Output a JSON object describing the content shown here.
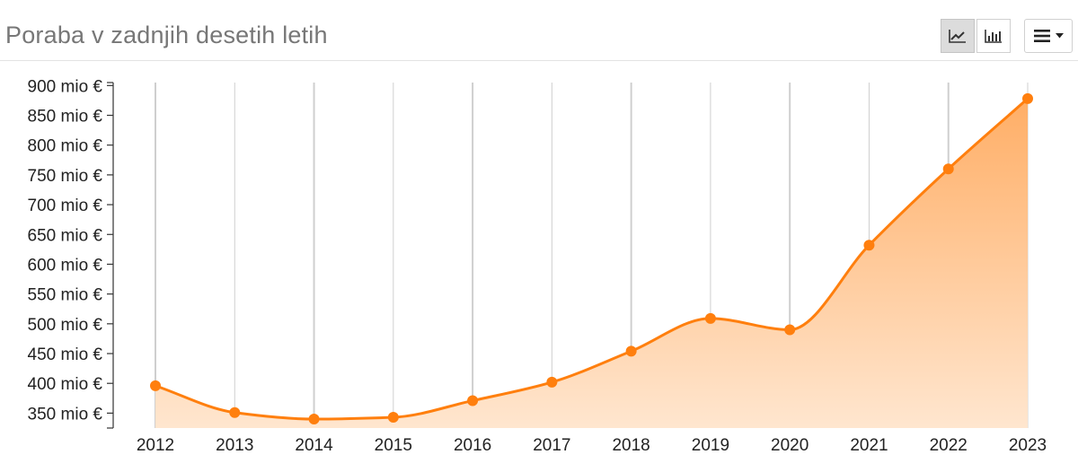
{
  "header": {
    "title": "Poraba v zadnjih desetih letih",
    "icons": {
      "line": "line-chart-icon",
      "bar": "bar-chart-icon",
      "menu": "hamburger-menu-icon",
      "caret": "caret-down-icon"
    }
  },
  "colors": {
    "accent": "#ff7f0e",
    "fill_top": "#ffae66",
    "fill_bottom": "#ffe6cf",
    "grid": "#cfcfcf"
  },
  "chart_data": {
    "type": "area",
    "title": "Poraba v zadnjih desetih letih",
    "xlabel": "",
    "ylabel": "",
    "categories": [
      "2012",
      "2013",
      "2014",
      "2015",
      "2016",
      "2017",
      "2018",
      "2019",
      "2020",
      "2021",
      "2022",
      "2023"
    ],
    "series": [
      {
        "values": [
          396,
          351,
          340,
          343,
          371,
          402,
          454,
          509,
          490,
          632,
          760,
          878
        ]
      }
    ],
    "ylim": [
      325,
      905
    ],
    "yticks": [
      350,
      400,
      450,
      500,
      550,
      600,
      650,
      700,
      750,
      800,
      850,
      900
    ],
    "ytick_labels": [
      "350 mio €",
      "400 mio €",
      "450 mio €",
      "500 mio €",
      "550 mio €",
      "600 mio €",
      "650 mio €",
      "700 mio €",
      "750 mio €",
      "800 mio €",
      "850 mio €",
      "900 mio €"
    ],
    "grid": true,
    "legend": "none"
  }
}
